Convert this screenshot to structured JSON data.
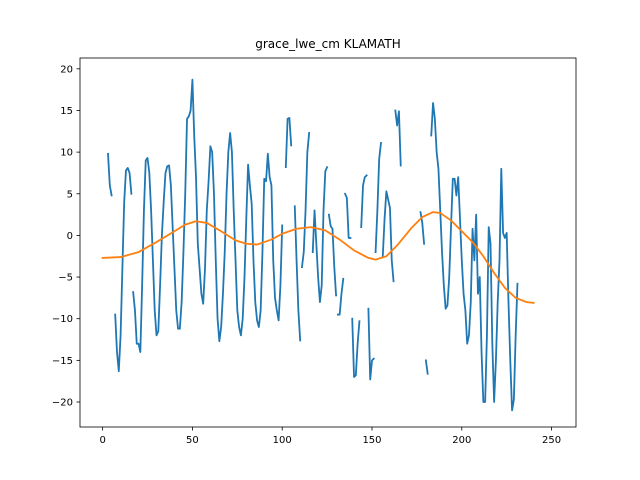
{
  "chart_data": {
    "type": "line",
    "title": "grace_lwe_cm KLAMATH",
    "xlabel": "",
    "ylabel": "",
    "xlim": [
      -12.6,
      263.6
    ],
    "ylim": [
      -23,
      21.3
    ],
    "x_ticks": [
      0,
      50,
      100,
      150,
      200,
      250
    ],
    "y_ticks": [
      -20,
      -15,
      -10,
      -5,
      0,
      5,
      10,
      15,
      20
    ],
    "grid": false,
    "legend": "none",
    "series": [
      {
        "color": "#1f77b4",
        "segments": [
          [
            [
              3,
              9.8
            ],
            [
              4,
              6
            ],
            [
              5,
              4.8
            ]
          ],
          [
            [
              7,
              -9.5
            ],
            [
              8,
              -14
            ],
            [
              9,
              -16.3
            ],
            [
              10,
              -12
            ],
            [
              11,
              -4
            ],
            [
              12,
              4
            ],
            [
              13,
              7.8
            ],
            [
              14,
              8.1
            ],
            [
              15,
              7.5
            ],
            [
              16,
              5
            ]
          ],
          [
            [
              17,
              -6.8
            ],
            [
              18,
              -9
            ],
            [
              19,
              -13
            ],
            [
              20,
              -13
            ],
            [
              21,
              -14
            ],
            [
              22,
              -6
            ],
            [
              23,
              3
            ],
            [
              24,
              9
            ],
            [
              25,
              9.3
            ],
            [
              26,
              7.5
            ],
            [
              27,
              3
            ],
            [
              28,
              -3
            ],
            [
              29,
              -9
            ],
            [
              30,
              -12
            ],
            [
              31,
              -11.5
            ],
            [
              32,
              -6
            ],
            [
              33,
              0
            ],
            [
              34,
              4
            ],
            [
              35,
              7.5
            ],
            [
              36,
              8.3
            ],
            [
              37,
              8.4
            ],
            [
              38,
              6
            ],
            [
              39,
              1
            ],
            [
              40,
              -4
            ],
            [
              41,
              -9
            ],
            [
              42,
              -11.2
            ],
            [
              43,
              -11.2
            ],
            [
              44,
              -8
            ],
            [
              45,
              -2
            ],
            [
              46,
              5
            ],
            [
              47,
              14
            ],
            [
              48,
              14.3
            ],
            [
              49,
              15
            ],
            [
              50,
              18.7
            ],
            [
              51,
              12
            ],
            [
              52,
              7
            ],
            [
              53,
              -1
            ],
            [
              54,
              -4
            ],
            [
              55,
              -7
            ],
            [
              56,
              -8.2
            ],
            [
              57,
              -4
            ],
            [
              58,
              3
            ],
            [
              59,
              6.5
            ],
            [
              60,
              10.7
            ],
            [
              61,
              10
            ],
            [
              62,
              5
            ],
            [
              63,
              -3
            ],
            [
              64,
              -10
            ],
            [
              65,
              -12.7
            ],
            [
              66,
              -11
            ],
            [
              67,
              -7
            ],
            [
              68,
              -2
            ],
            [
              69,
              5
            ],
            [
              70,
              10
            ],
            [
              71,
              12.3
            ],
            [
              72,
              10
            ],
            [
              73,
              3
            ],
            [
              74,
              -3
            ],
            [
              75,
              -9
            ],
            [
              76,
              -11
            ],
            [
              77,
              -12
            ],
            [
              78,
              -10
            ],
            [
              79,
              -5
            ],
            [
              80,
              2
            ],
            [
              81,
              8.5
            ],
            [
              82,
              6
            ],
            [
              83,
              3.8
            ],
            [
              84,
              -3
            ],
            [
              85,
              -8
            ],
            [
              86,
              -10.2
            ],
            [
              87,
              -11
            ],
            [
              88,
              -9
            ],
            [
              89,
              -2
            ],
            [
              90,
              6.8
            ],
            [
              91,
              6.5
            ],
            [
              92,
              9.8
            ],
            [
              93,
              7
            ],
            [
              94,
              6
            ],
            [
              95,
              -3
            ],
            [
              96,
              -7.5
            ],
            [
              97,
              -9
            ],
            [
              98,
              -10.2
            ],
            [
              99,
              -6
            ],
            [
              100,
              1.2
            ]
          ],
          [
            [
              102,
              8.2
            ],
            [
              103,
              14
            ],
            [
              104,
              14.1
            ],
            [
              105,
              10.8
            ]
          ],
          [
            [
              107,
              3.5
            ],
            [
              108,
              -3
            ],
            [
              109,
              -9
            ],
            [
              110,
              -12.6
            ]
          ],
          [
            [
              111,
              -3.8
            ],
            [
              112,
              -2
            ],
            [
              113,
              3
            ],
            [
              114,
              10
            ],
            [
              115,
              12.3
            ]
          ],
          [
            [
              117,
              -2
            ],
            [
              118,
              3
            ],
            [
              119,
              -1
            ],
            [
              120,
              -5
            ],
            [
              121,
              -8
            ],
            [
              122,
              -6
            ],
            [
              123,
              3
            ],
            [
              124,
              7.7
            ],
            [
              125,
              8.2
            ]
          ],
          [
            [
              126,
              2.5
            ],
            [
              127,
              1.1
            ],
            [
              128,
              0.8
            ],
            [
              129,
              -3.8
            ],
            [
              130,
              -7.2
            ]
          ],
          [
            [
              131,
              -9.5
            ],
            [
              132,
              -9.5
            ],
            [
              133,
              -7
            ],
            [
              134,
              -5.2
            ]
          ],
          [
            [
              135,
              5
            ],
            [
              136,
              4.5
            ],
            [
              137,
              -0.3
            ],
            [
              138,
              -0.3
            ]
          ],
          [
            [
              139,
              -10
            ],
            [
              140,
              -17
            ],
            [
              141,
              -16.8
            ],
            [
              142,
              -13
            ],
            [
              143,
              -10.3
            ]
          ],
          [
            [
              144,
              1
            ],
            [
              145,
              6
            ],
            [
              146,
              7
            ],
            [
              147,
              7.2
            ]
          ],
          [
            [
              148,
              -8.8
            ],
            [
              149,
              -17.3
            ],
            [
              150,
              -15
            ],
            [
              151,
              -14.8
            ]
          ],
          [
            [
              152,
              -2
            ],
            [
              153,
              3
            ],
            [
              154,
              9.2
            ],
            [
              155,
              11.1
            ]
          ],
          [
            [
              156,
              -2.5
            ],
            [
              157,
              2
            ],
            [
              158,
              5.3
            ],
            [
              159,
              4.3
            ],
            [
              160,
              3.3
            ],
            [
              161,
              -3
            ],
            [
              162,
              -5.5
            ]
          ],
          [
            [
              163,
              15
            ],
            [
              164,
              13.2
            ],
            [
              165,
              14.9
            ],
            [
              166,
              8.4
            ]
          ],
          [
            [
              180,
              -15
            ],
            [
              181,
              -16.6
            ]
          ],
          [
            [
              177,
              2.8
            ],
            [
              178,
              1.5
            ],
            [
              179,
              -1
            ]
          ],
          [
            [
              183,
              12
            ],
            [
              184,
              15.9
            ],
            [
              185,
              14
            ],
            [
              186,
              10
            ],
            [
              187,
              8
            ],
            [
              188,
              3
            ],
            [
              189,
              -2
            ],
            [
              190,
              -6
            ],
            [
              191,
              -8.8
            ],
            [
              192,
              -8.4
            ],
            [
              193,
              -5
            ],
            [
              194,
              1
            ],
            [
              195,
              6.8
            ],
            [
              196,
              6.8
            ],
            [
              197,
              4.8
            ],
            [
              198,
              7
            ],
            [
              199,
              2
            ],
            [
              200,
              -3
            ],
            [
              201,
              -7
            ],
            [
              202,
              -9
            ],
            [
              203,
              -13
            ],
            [
              204,
              -12
            ],
            [
              205,
              -8
            ],
            [
              206,
              0.8
            ],
            [
              207,
              -3
            ],
            [
              208,
              2.5
            ],
            [
              209,
              -7
            ],
            [
              210,
              -5
            ],
            [
              211,
              -14
            ],
            [
              212,
              -20
            ],
            [
              213,
              -20
            ],
            [
              214,
              -12
            ],
            [
              215,
              1
            ],
            [
              216,
              -1
            ],
            [
              217,
              -13
            ],
            [
              218,
              -20
            ],
            [
              219,
              -15
            ],
            [
              220,
              -8
            ],
            [
              221,
              -3
            ],
            [
              222,
              8
            ],
            [
              223,
              0.3
            ],
            [
              224,
              -0.3
            ],
            [
              225,
              0.3
            ],
            [
              226,
              -8
            ],
            [
              227,
              -15
            ],
            [
              228,
              -21
            ],
            [
              229,
              -19.7
            ],
            [
              230,
              -12
            ],
            [
              231,
              -5.8
            ]
          ]
        ]
      },
      {
        "color": "#ff7f0e",
        "points": [
          [
            0,
            -2.7
          ],
          [
            10,
            -2.6
          ],
          [
            20,
            -2
          ],
          [
            30,
            -0.8
          ],
          [
            40,
            0.5
          ],
          [
            46,
            1.3
          ],
          [
            52,
            1.7
          ],
          [
            58,
            1.5
          ],
          [
            66,
            0.5
          ],
          [
            74,
            -0.6
          ],
          [
            80,
            -1
          ],
          [
            86,
            -1.1
          ],
          [
            94,
            -0.5
          ],
          [
            100,
            0.2
          ],
          [
            108,
            0.8
          ],
          [
            116,
            1
          ],
          [
            124,
            0.6
          ],
          [
            132,
            -0.5
          ],
          [
            140,
            -1.8
          ],
          [
            148,
            -2.7
          ],
          [
            152,
            -2.9
          ],
          [
            158,
            -2.5
          ],
          [
            164,
            -1.2
          ],
          [
            172,
            0.9
          ],
          [
            178,
            2.2
          ],
          [
            184,
            2.8
          ],
          [
            188,
            2.7
          ],
          [
            194,
            1.8
          ],
          [
            200,
            0.5
          ],
          [
            206,
            -0.8
          ],
          [
            212,
            -2.5
          ],
          [
            218,
            -4.5
          ],
          [
            224,
            -6.3
          ],
          [
            230,
            -7.5
          ],
          [
            236,
            -8
          ],
          [
            240,
            -8.1
          ]
        ]
      }
    ]
  }
}
